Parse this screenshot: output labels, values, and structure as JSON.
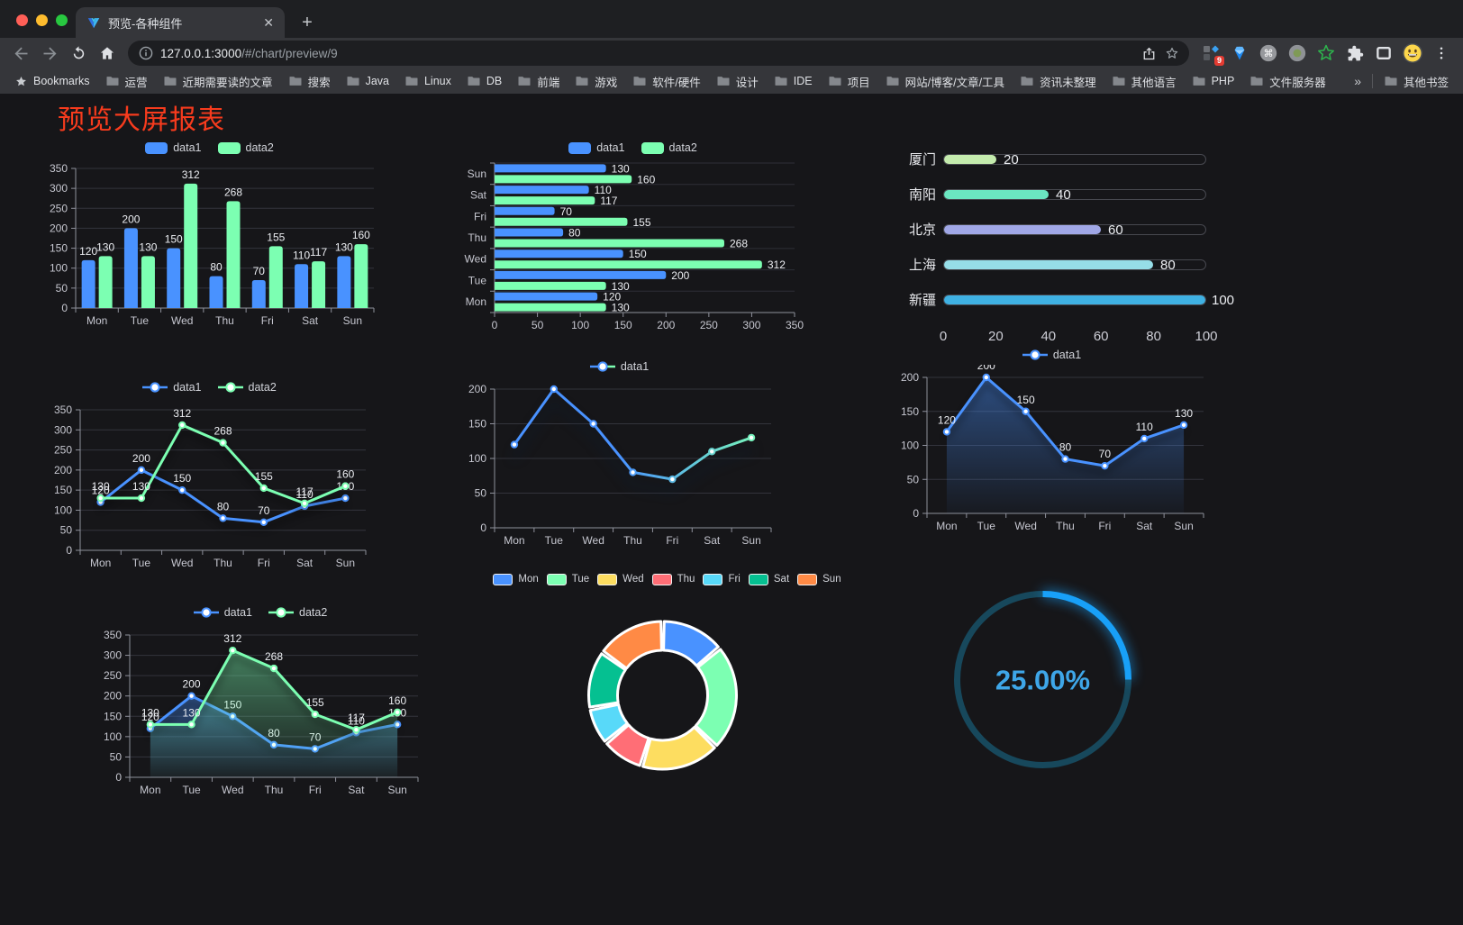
{
  "browser": {
    "tab": {
      "title": "预览-各种组件",
      "close_label": "✕"
    },
    "new_tab_label": "+",
    "url": {
      "host": "127.0.0.1:3000",
      "path": "/#/chart/preview/9"
    },
    "extension_badge": "9",
    "bookmarks_bar": {
      "bookmarks_label": "Bookmarks",
      "folders": [
        "运营",
        "近期需要读的文章",
        "搜索",
        "Java",
        "Linux",
        "DB",
        "前端",
        "游戏",
        "软件/硬件",
        "设计",
        "IDE",
        "项目",
        "网站/博客/文章/工具",
        "资讯未整理",
        "其他语言",
        "PHP",
        "文件服务器"
      ],
      "overflow_label": "»",
      "other_bookmarks_label": "其他书签"
    }
  },
  "page": {
    "title": "预览大屏报表",
    "title_color": "#f73b1d",
    "background": "#161619"
  },
  "chart_data": [
    {
      "name": "grouped-bar",
      "type": "bar",
      "legend_icon": "bar",
      "categories": [
        "Mon",
        "Tue",
        "Wed",
        "Thu",
        "Fri",
        "Sat",
        "Sun"
      ],
      "series": [
        {
          "name": "data1",
          "color": "#4992ff",
          "values": [
            120,
            200,
            150,
            80,
            70,
            110,
            130
          ]
        },
        {
          "name": "data2",
          "color": "#7cffb2",
          "values": [
            130,
            130,
            312,
            268,
            155,
            117,
            160
          ]
        }
      ],
      "ylim": [
        0,
        350
      ],
      "yticks": [
        0,
        50,
        100,
        150,
        200,
        250,
        300,
        350
      ]
    },
    {
      "name": "grouped-horizontal-bar",
      "type": "hbar",
      "legend_icon": "bar",
      "categories": [
        "Mon",
        "Tue",
        "Wed",
        "Thu",
        "Fri",
        "Sat",
        "Sun"
      ],
      "display_order_top_to_bottom": [
        "Sun",
        "Sat",
        "Fri",
        "Thu",
        "Wed",
        "Tue",
        "Mon"
      ],
      "series": [
        {
          "name": "data1",
          "color": "#4992ff",
          "values": [
            120,
            200,
            150,
            80,
            70,
            110,
            130
          ]
        },
        {
          "name": "data2",
          "color": "#7cffb2",
          "values": [
            130,
            130,
            312,
            268,
            155,
            117,
            160
          ]
        }
      ],
      "xlim": [
        0,
        350
      ],
      "xticks": [
        0,
        50,
        100,
        150,
        200,
        250,
        300,
        350
      ]
    },
    {
      "name": "progress-bars",
      "type": "progress",
      "max": 100,
      "xticks": [
        0,
        20,
        40,
        60,
        80,
        100
      ],
      "rows": [
        {
          "label": "厦门",
          "value": 20,
          "color": "#c4ebad"
        },
        {
          "label": "南阳",
          "value": 40,
          "color": "#6be6c1"
        },
        {
          "label": "北京",
          "value": 60,
          "color": "#a0a7e6"
        },
        {
          "label": "上海",
          "value": 80,
          "color": "#96dee8"
        },
        {
          "label": "新疆",
          "value": 100,
          "color": "#3fb1e3"
        }
      ]
    },
    {
      "name": "line-two-series",
      "type": "line",
      "legend_icon": "line",
      "labels": true,
      "area": false,
      "categories": [
        "Mon",
        "Tue",
        "Wed",
        "Thu",
        "Fri",
        "Sat",
        "Sun"
      ],
      "series": [
        {
          "name": "data1",
          "color": "#4992ff",
          "values": [
            120,
            200,
            150,
            80,
            70,
            110,
            130
          ]
        },
        {
          "name": "data2",
          "color": "#7cffb2",
          "values": [
            130,
            130,
            312,
            268,
            155,
            117,
            160
          ]
        }
      ],
      "ylim": [
        0,
        350
      ],
      "yticks": [
        0,
        50,
        100,
        150,
        200,
        250,
        300,
        350
      ]
    },
    {
      "name": "line-gradient",
      "type": "line",
      "legend_icon": "line",
      "labels": false,
      "area": false,
      "shadow": "strong",
      "gradient_line": [
        "#4992ff",
        "#7cffb2"
      ],
      "categories": [
        "Mon",
        "Tue",
        "Wed",
        "Thu",
        "Fri",
        "Sat",
        "Sun"
      ],
      "series": [
        {
          "name": "data1",
          "color": "#4992ff",
          "color2": "#7cffb2",
          "values": [
            120,
            200,
            150,
            80,
            70,
            110,
            130
          ]
        }
      ],
      "ylim": [
        0,
        200
      ],
      "yticks": [
        0,
        50,
        100,
        150,
        200
      ]
    },
    {
      "name": "area-single",
      "type": "line",
      "legend_icon": "line",
      "labels": true,
      "area": true,
      "categories": [
        "Mon",
        "Tue",
        "Wed",
        "Thu",
        "Fri",
        "Sat",
        "Sun"
      ],
      "series": [
        {
          "name": "data1",
          "color": "#4992ff",
          "values": [
            120,
            200,
            150,
            80,
            70,
            110,
            130
          ]
        }
      ],
      "ylim": [
        0,
        200
      ],
      "yticks": [
        0,
        50,
        100,
        150,
        200
      ]
    },
    {
      "name": "area-two-series",
      "type": "line",
      "legend_icon": "line",
      "labels": true,
      "area": true,
      "categories": [
        "Mon",
        "Tue",
        "Wed",
        "Thu",
        "Fri",
        "Sat",
        "Sun"
      ],
      "series": [
        {
          "name": "data1",
          "color": "#4992ff",
          "values": [
            120,
            200,
            150,
            80,
            70,
            110,
            130
          ]
        },
        {
          "name": "data2",
          "color": "#7cffb2",
          "values": [
            130,
            130,
            312,
            268,
            155,
            117,
            160
          ]
        }
      ],
      "ylim": [
        0,
        350
      ],
      "yticks": [
        0,
        50,
        100,
        150,
        200,
        250,
        300,
        350
      ]
    },
    {
      "name": "donut",
      "type": "pie",
      "legend_icon": "pie",
      "legend_position": "top",
      "items": [
        {
          "label": "Mon",
          "value": 120,
          "color": "#4992ff"
        },
        {
          "label": "Tue",
          "value": 200,
          "color": "#7cffb2"
        },
        {
          "label": "Wed",
          "value": 150,
          "color": "#fddd60"
        },
        {
          "label": "Thu",
          "value": 80,
          "color": "#ff6e76"
        },
        {
          "label": "Fri",
          "value": 70,
          "color": "#58d9f9"
        },
        {
          "label": "Sat",
          "value": 110,
          "color": "#05c091"
        },
        {
          "label": "Sun",
          "value": 130,
          "color": "#ff8a45"
        }
      ]
    },
    {
      "name": "gauge",
      "type": "gauge",
      "value": 25,
      "max": 100,
      "label": "25.00%",
      "progress_color": "#18a0f8",
      "track_color": "#17485c",
      "text_color": "#3ea6e8"
    }
  ]
}
